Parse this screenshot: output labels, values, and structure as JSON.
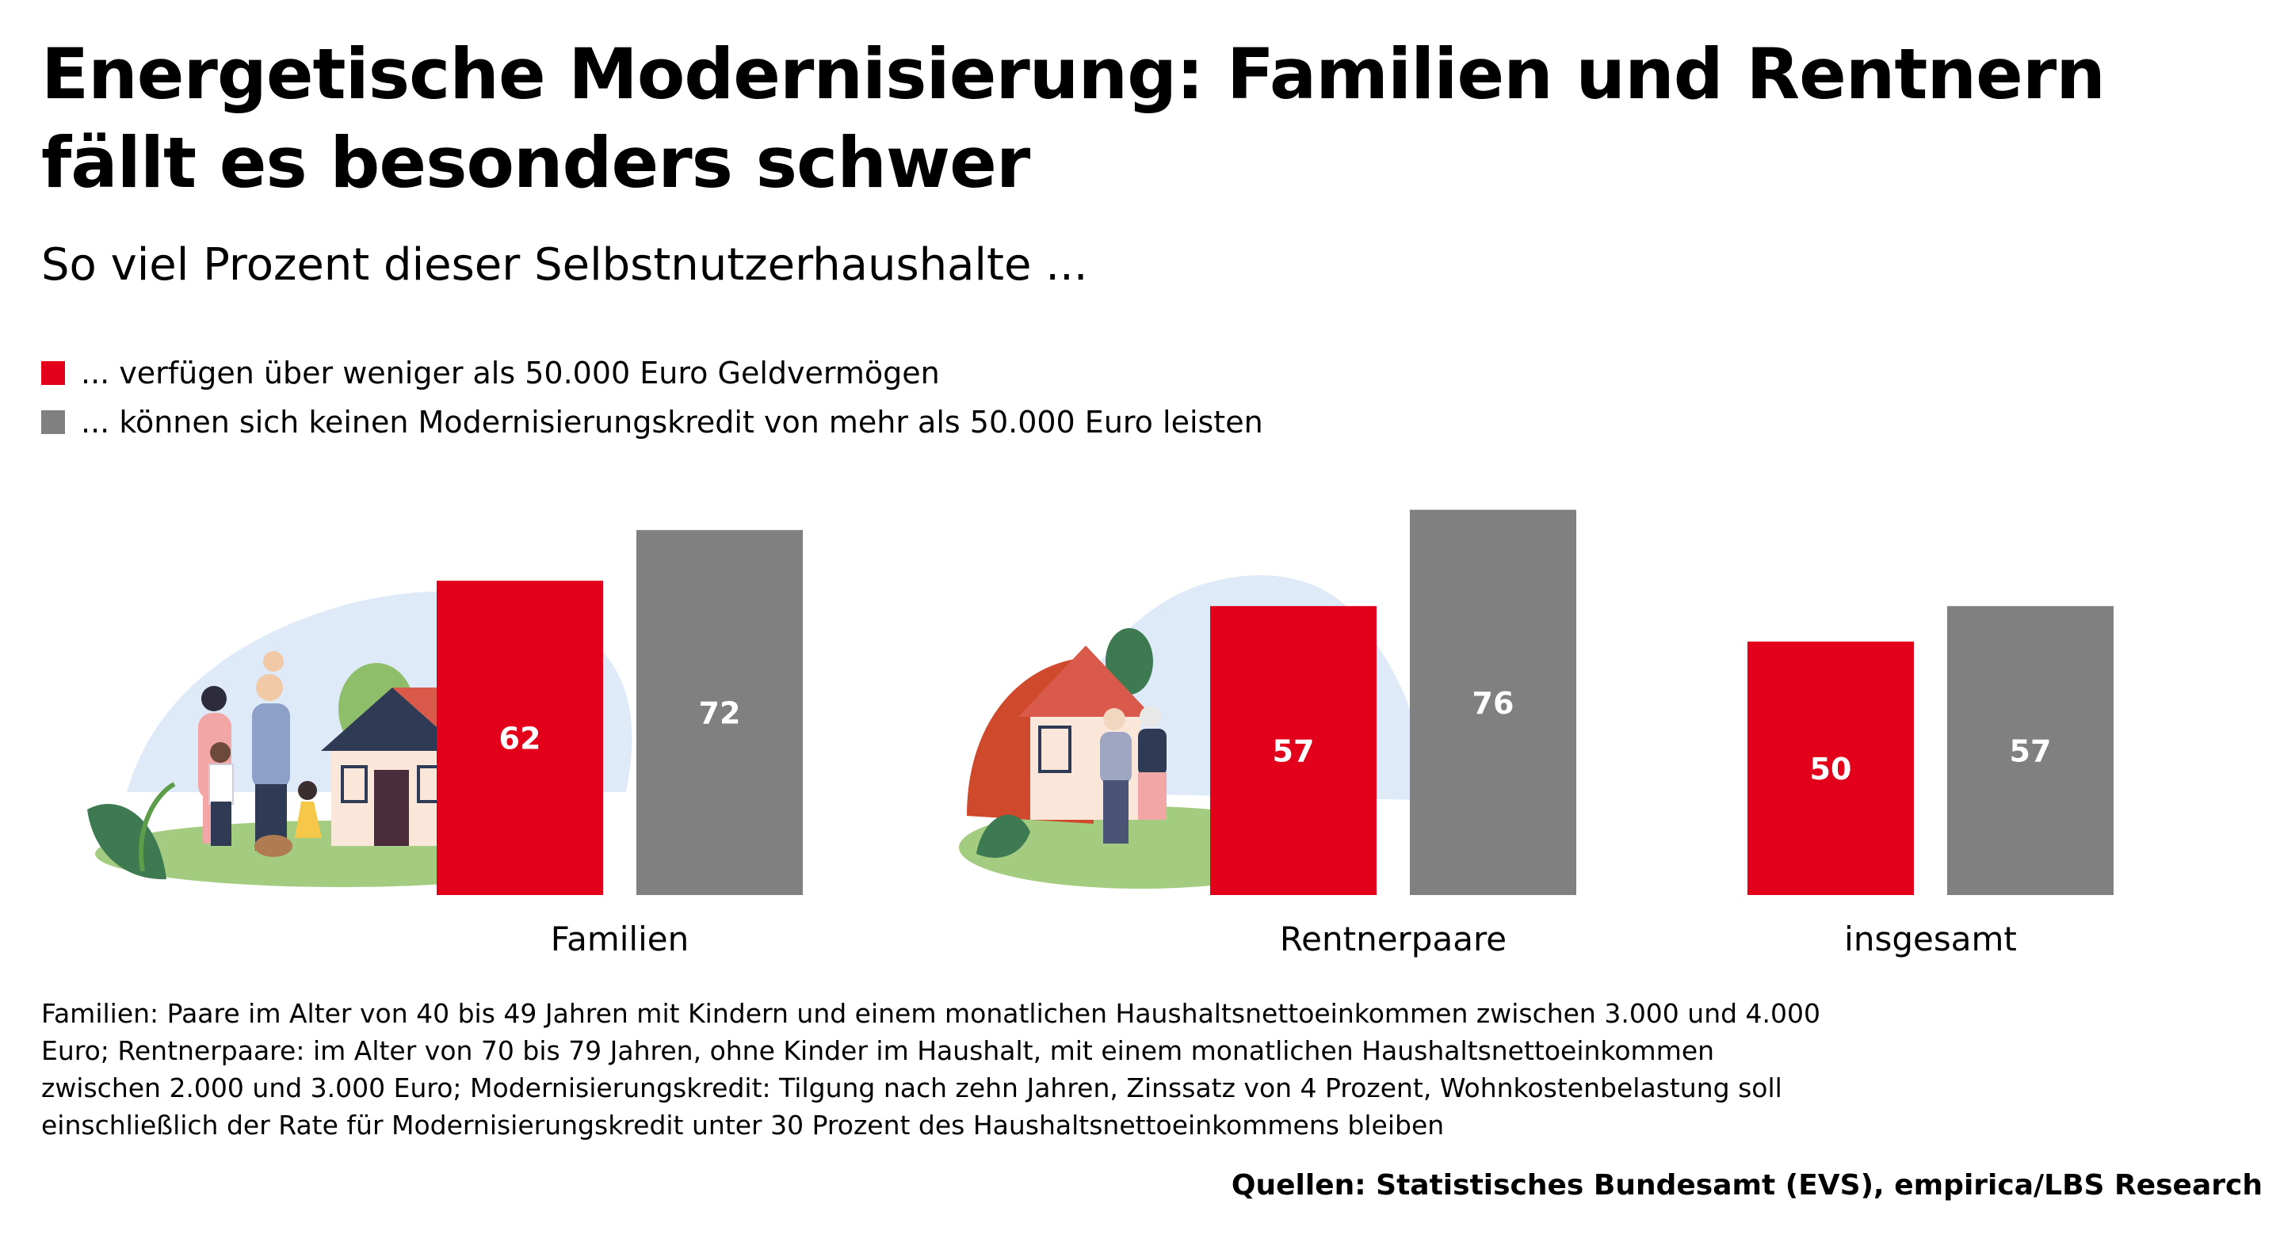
{
  "title": "Energetische Modernisierung: Familien und Rentnern fällt es besonders schwer",
  "subtitle": "So viel Prozent dieser Selbstnutzerhaushalte ...",
  "legend": [
    {
      "label": "... verfügen über weniger als 50.000 Euro Geldvermögen",
      "color": "#e2001a"
    },
    {
      "label": "... können sich keinen Modernisierungskredit von mehr als 50.000 Euro leisten",
      "color": "#808080"
    }
  ],
  "chart_data": {
    "type": "bar",
    "categories": [
      "Familien",
      "Rentnerpaare",
      "insgesamt"
    ],
    "series": [
      {
        "name": "... verfügen über weniger als 50.000 Euro Geldvermögen",
        "values": [
          62,
          57,
          50
        ],
        "color": "#e2001a"
      },
      {
        "name": "... können sich keinen Modernisierungskredit von mehr als 50.000 Euro leisten",
        "values": [
          72,
          76,
          57
        ],
        "color": "#808080"
      }
    ],
    "ylim": [
      0,
      76
    ],
    "grid": false,
    "legend_position": "top-left",
    "data_labels": true
  },
  "illustrations": [
    {
      "name": "family-house-illustration",
      "category": "Familien"
    },
    {
      "name": "retired-couple-house-illustration",
      "category": "Rentnerpaare"
    }
  ],
  "footnote": "Familien: Paare im Alter von 40 bis 49 Jahren mit Kindern und einem monatlichen Haushaltsnettoeinkommen zwischen 3.000 und 4.000 Euro; Rentnerpaare: im Alter von 70 bis 79 Jahren, ohne Kinder im Haushalt, mit einem monatlichen Haushaltsnettoeinkommen zwischen 2.000 und 3.000 Euro; Modernisierungskredit: Tilgung nach zehn Jahren, Zinssatz von 4 Prozent, Wohnkostenbelastung soll einschließlich der Rate für Modernisierungskredit unter 30 Prozent des Haushaltsnettoeinkommens bleiben",
  "source": "Quellen: Statistisches Bundesamt (EVS), empirica/LBS Research"
}
